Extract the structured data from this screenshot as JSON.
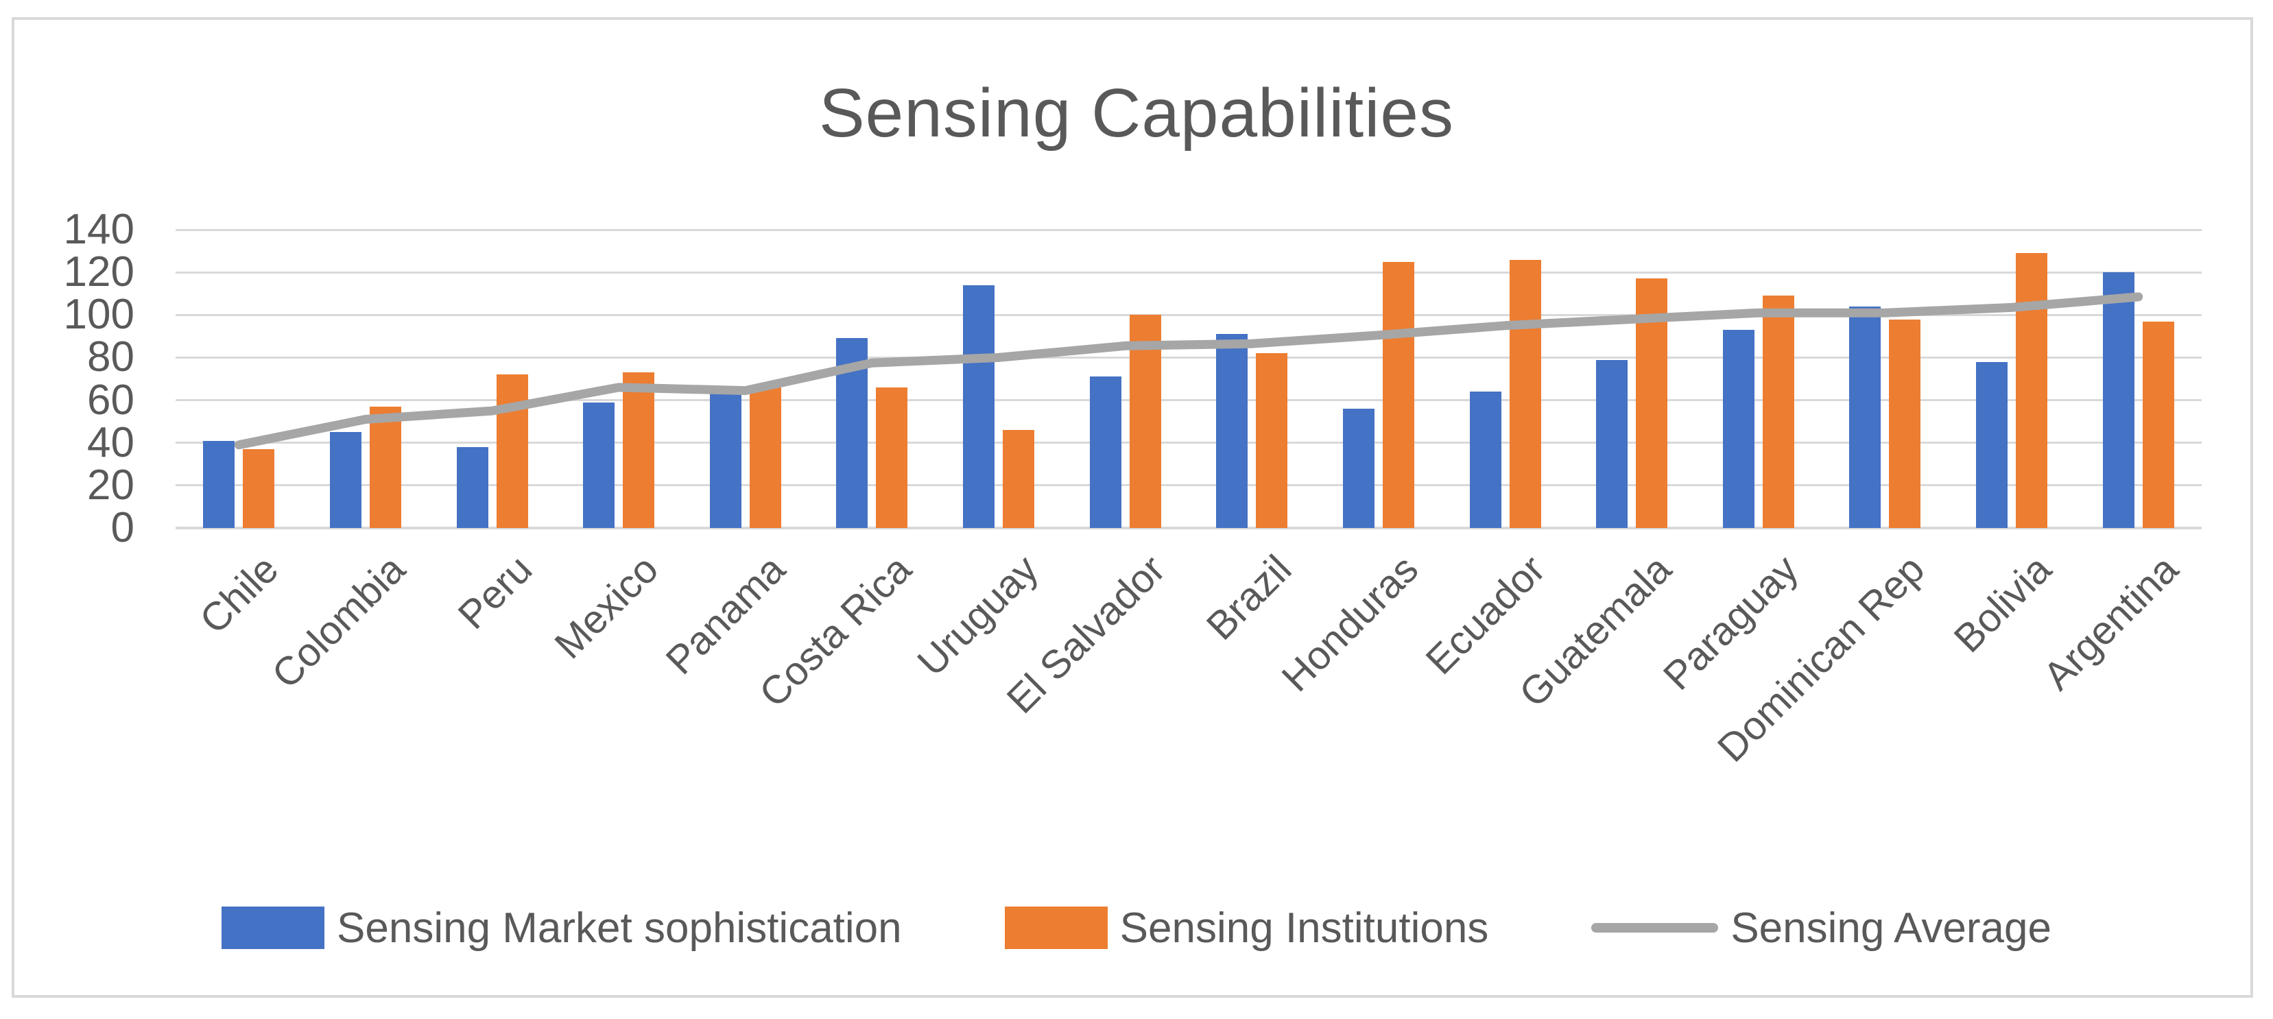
{
  "chart": {
    "title": "Sensing Capabilities"
  },
  "colors": {
    "bar_blue": "#4472C4",
    "bar_orange": "#ED7D31",
    "line_gray": "#A6A6A6",
    "gridline": "#D9D9D9",
    "text": "#595959",
    "frame_border": "#D9D9D9",
    "background": "#FFFFFF"
  },
  "chart_data": {
    "type": "bar",
    "title": "Sensing Capabilities",
    "categories": [
      "Chile",
      "Colombia",
      "Peru",
      "Mexico",
      "Panama",
      "Costa Rica",
      "Uruguay",
      "El Salvador",
      "Brazil",
      "Honduras",
      "Ecuador",
      "Guatemala",
      "Paraguay",
      "Dominican Rep",
      "Bolivia",
      "Argentina"
    ],
    "series": [
      {
        "name": "Sensing Market sophistication",
        "type": "bar",
        "color": "#4472C4",
        "values": [
          41,
          45,
          38,
          59,
          63,
          89,
          114,
          71,
          91,
          56,
          64,
          79,
          93,
          104,
          78,
          120
        ]
      },
      {
        "name": "Sensing Institutions",
        "type": "bar",
        "color": "#ED7D31",
        "values": [
          37,
          57,
          72,
          73,
          66,
          66,
          46,
          100,
          82,
          125,
          126,
          117,
          109,
          98,
          129,
          97
        ]
      },
      {
        "name": "Sensing Average",
        "type": "line",
        "color": "#A6A6A6",
        "values": [
          39,
          51,
          55,
          66,
          64.5,
          77.5,
          80,
          85.5,
          86.5,
          90.5,
          95,
          98,
          101,
          101,
          103.5,
          108.5
        ]
      }
    ],
    "xlabel": "",
    "ylabel": "",
    "ylim": [
      0,
      140
    ],
    "yticks": [
      0,
      20,
      40,
      60,
      80,
      100,
      120,
      140
    ],
    "grid": true,
    "legend_position": "bottom",
    "x_tick_rotation_deg": 45
  }
}
